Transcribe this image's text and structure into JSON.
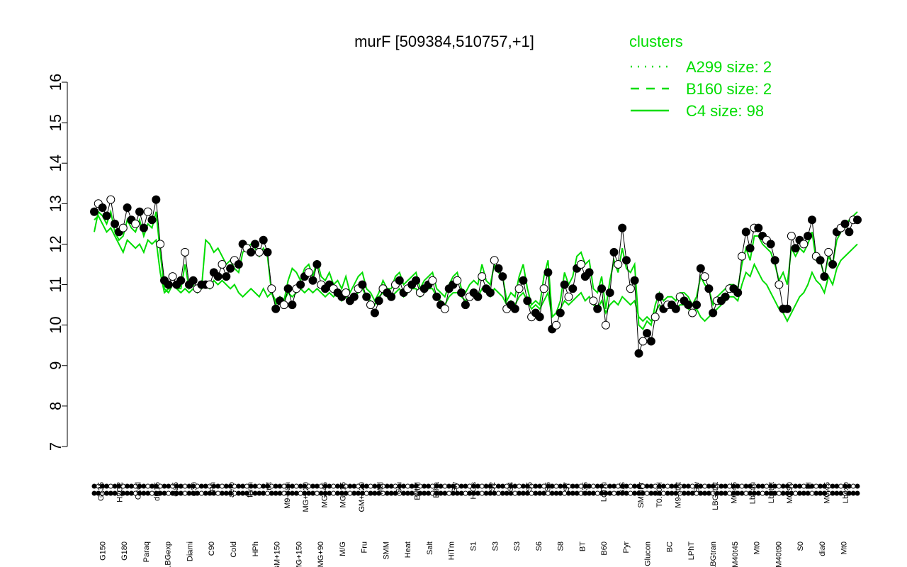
{
  "chart_data": {
    "type": "line",
    "title": "murF [509384,510757,+1]",
    "xlabel": "",
    "ylabel": "",
    "ylim": [
      7,
      16
    ],
    "yticks": [
      7,
      8,
      9,
      10,
      11,
      12,
      13,
      14,
      15,
      16
    ],
    "grid": false,
    "legend": {
      "title": "clusters",
      "placement": "top-right",
      "color": "#00dd00",
      "entries": [
        {
          "label": "A299 size: 2",
          "style": "dotted"
        },
        {
          "label": "B160 size: 2",
          "style": "dashed"
        },
        {
          "label": "C4 size: 98",
          "style": "solid"
        }
      ]
    },
    "x_labels_top": [
      "G135",
      "H2O2",
      "Oxctl",
      "dia15",
      "dia5",
      "C30",
      "LPh",
      "aero",
      "ferm",
      "nit",
      "M9-tran",
      "MG+120",
      "MG+45",
      "MG+15",
      "GM+120",
      "Mal",
      "Glu",
      "BMM",
      "Etha",
      "Gly",
      "HiOs",
      "S2",
      "S4",
      "S5",
      "S6",
      "S7",
      "B36",
      "LoTm",
      "G/S",
      "SMMPr",
      "T0.30H",
      "M9-stat",
      "Sw",
      "LBGstat",
      "M0t45",
      "Lbtran",
      "Lbstat",
      "M0t90",
      "BI",
      "M0t45",
      "Lbexp"
    ],
    "x_labels_bottom": [
      "G150",
      "G180",
      "Paraq",
      "LBGexp",
      "Diami",
      "C90",
      "Cold",
      "HPh",
      "GM+150",
      "MG+150",
      "MG+90",
      "M/G",
      "Fru",
      "SMM",
      "Heat",
      "Salt",
      "HiTm",
      "S1",
      "S3",
      "S3",
      "S6",
      "S8",
      "BT",
      "B60",
      "Pyr",
      "Glucon",
      "BC",
      "LPhT",
      "LBGtran",
      "M40t45",
      "Mt0",
      "M40t90",
      "S0",
      "dia0",
      "Mt0"
    ],
    "series": [
      {
        "name": "",
        "style": "points",
        "values": [
          12.8,
          13.0,
          12.9,
          12.7,
          13.1,
          12.5,
          12.3,
          12.4,
          12.9,
          12.6,
          12.5,
          12.8,
          12.4,
          12.8,
          12.6,
          13.1,
          12.0,
          11.1,
          11.0,
          11.2,
          11.0,
          11.1,
          11.8,
          11.0,
          11.1,
          10.9,
          11.0,
          11.0,
          11.0,
          11.3,
          11.2,
          11.5,
          11.2,
          11.4,
          11.6,
          11.5,
          12.0,
          11.9,
          11.8,
          12.0,
          11.8,
          12.1,
          11.8,
          10.9,
          10.4,
          10.6,
          10.5,
          10.9,
          10.5,
          10.9,
          11.0,
          11.2,
          11.3,
          11.1,
          11.5,
          11.0,
          10.9,
          11.0,
          10.9,
          10.8,
          10.7,
          10.8,
          10.6,
          10.7,
          10.9,
          11.0,
          10.7,
          10.5,
          10.3,
          10.6,
          10.9,
          10.8,
          10.7,
          11.0,
          11.1,
          10.8,
          10.9,
          11.0,
          11.1,
          10.8,
          10.9,
          11.0,
          11.1,
          10.7,
          10.5,
          10.4,
          10.9,
          11.0,
          11.1,
          10.8,
          10.5,
          10.7,
          10.8,
          10.7,
          11.2,
          10.9,
          10.8,
          11.6,
          11.4,
          11.2,
          10.4,
          10.5,
          10.4,
          10.9,
          11.1,
          10.6,
          10.2,
          10.3,
          10.2,
          10.9,
          11.3,
          9.9,
          10.0,
          10.3,
          11.0,
          10.7,
          10.9,
          11.4,
          11.5,
          11.2,
          11.3,
          10.6,
          10.4,
          10.9,
          10.0,
          10.8,
          11.8,
          11.5,
          12.4,
          11.6,
          10.9,
          11.1,
          9.3,
          9.6,
          9.8,
          9.6,
          10.2,
          10.7,
          10.4,
          10.5,
          10.5,
          10.4,
          10.7,
          10.6,
          10.5,
          10.3,
          10.5,
          11.4,
          11.2,
          10.9,
          10.3,
          10.6,
          10.6,
          10.7,
          10.9,
          10.9,
          10.8,
          11.7,
          12.3,
          11.9,
          12.4,
          12.4,
          12.2,
          12.1,
          12.0,
          11.6,
          11.0,
          10.4,
          10.4,
          12.2,
          11.9,
          12.1,
          12.0,
          12.2,
          12.6,
          11.7,
          11.6,
          11.2,
          11.8,
          11.5,
          12.3,
          12.4,
          12.5,
          12.3,
          12.6,
          12.6
        ]
      },
      {
        "name": "",
        "style": "line",
        "values": [
          12.3,
          12.8,
          12.7,
          12.5,
          12.8,
          12.3,
          12.1,
          12.2,
          12.6,
          12.4,
          12.3,
          12.6,
          12.2,
          12.5,
          12.4,
          12.8,
          11.8,
          10.9,
          10.8,
          11.0,
          10.9,
          10.9,
          11.5,
          10.9,
          11.0,
          10.8,
          10.9,
          12.1,
          12.0,
          11.8,
          11.9,
          11.7,
          11.5,
          11.6,
          11.4,
          11.3,
          11.8,
          11.9,
          12.0,
          11.9,
          11.7,
          11.9,
          11.7,
          10.8,
          10.5,
          10.7,
          10.6,
          11.1,
          11.4,
          11.3,
          11.1,
          11.4,
          11.5,
          11.2,
          11.6,
          11.2,
          11.1,
          11.3,
          11.0,
          11.1,
          10.9,
          11.2,
          10.8,
          11.0,
          11.2,
          11.3,
          10.9,
          10.8,
          10.6,
          10.8,
          11.1,
          10.9,
          10.9,
          11.2,
          11.3,
          11.0,
          11.1,
          11.2,
          11.3,
          10.9,
          11.1,
          11.2,
          11.3,
          10.9,
          10.8,
          10.7,
          11.0,
          11.2,
          11.3,
          10.9,
          10.8,
          11.0,
          11.1,
          11.0,
          11.5,
          11.1,
          11.0,
          11.5,
          11.3,
          11.2,
          10.6,
          10.8,
          10.7,
          11.2,
          11.5,
          10.9,
          10.5,
          10.6,
          10.5,
          11.2,
          11.6,
          10.2,
          10.3,
          10.6,
          11.3,
          11.0,
          11.2,
          11.7,
          11.8,
          11.5,
          11.6,
          10.9,
          10.8,
          11.2,
          10.4,
          11.1,
          11.6,
          11.3,
          11.9,
          11.4,
          11.3,
          11.5,
          10.0,
          9.9,
          10.1,
          10.0,
          10.5,
          10.8,
          10.6,
          10.7,
          10.7,
          10.6,
          10.8,
          10.8,
          10.7,
          10.5,
          10.7,
          11.2,
          11.0,
          10.9,
          10.5,
          10.7,
          10.8,
          10.9,
          11.0,
          11.0,
          10.9,
          11.5,
          11.9,
          11.6,
          12.2,
          12.2,
          12.0,
          11.9,
          11.8,
          11.5,
          11.1,
          11.3,
          11.0,
          11.9,
          11.7,
          11.9,
          11.8,
          12.0,
          12.3,
          11.6,
          11.6,
          11.2,
          11.7,
          11.5,
          12.1,
          12.3,
          12.4,
          12.6,
          12.7,
          12.8
        ]
      },
      {
        "name": "",
        "style": "line",
        "values": [
          12.6,
          12.7,
          12.5,
          12.3,
          12.4,
          12.2,
          12.0,
          11.8,
          12.1,
          12.0,
          11.9,
          12.0,
          11.8,
          12.1,
          12.0,
          12.1,
          11.3,
          10.8,
          10.9,
          11.0,
          10.9,
          10.8,
          10.9,
          10.8,
          10.9,
          10.8,
          10.9,
          11.0,
          10.9,
          11.1,
          11.0,
          11.1,
          11.0,
          10.9,
          11.0,
          10.8,
          10.7,
          10.8,
          10.9,
          10.8,
          10.7,
          10.9,
          10.7,
          10.8,
          10.6,
          10.7,
          10.6,
          10.8,
          10.7,
          10.8,
          10.9,
          10.8,
          10.9,
          10.8,
          10.9,
          10.8,
          10.7,
          10.8,
          10.7,
          10.8,
          10.6,
          10.7,
          10.6,
          10.7,
          10.8,
          10.9,
          10.7,
          10.6,
          10.5,
          10.7,
          10.8,
          10.7,
          10.7,
          10.8,
          10.9,
          10.7,
          10.8,
          10.9,
          10.9,
          10.7,
          10.8,
          10.9,
          10.9,
          10.7,
          10.6,
          10.5,
          10.7,
          10.8,
          10.8,
          10.7,
          10.6,
          10.7,
          10.8,
          10.7,
          10.9,
          10.8,
          10.7,
          10.9,
          10.8,
          10.7,
          10.5,
          10.6,
          10.5,
          10.7,
          10.8,
          10.6,
          10.4,
          10.5,
          10.4,
          10.6,
          10.8,
          10.2,
          10.3,
          10.4,
          10.6,
          10.5,
          10.6,
          10.7,
          10.8,
          10.6,
          10.7,
          10.5,
          10.4,
          10.6,
          10.3,
          10.5,
          10.6,
          10.5,
          10.7,
          10.6,
          10.5,
          10.6,
          10.2,
          10.1,
          10.2,
          10.1,
          10.3,
          10.5,
          10.4,
          10.5,
          10.5,
          10.4,
          10.5,
          10.5,
          10.4,
          10.3,
          10.4,
          10.2,
          10.1,
          10.2,
          10.3,
          10.4,
          10.5,
          10.6,
          10.7,
          10.7,
          10.6,
          11.0,
          11.3,
          11.2,
          11.5,
          11.3,
          11.1,
          11.0,
          10.8,
          10.6,
          10.4,
          10.3,
          10.1,
          10.3,
          10.5,
          10.7,
          10.8,
          11.0,
          11.3,
          11.1,
          11.0,
          10.8,
          11.2,
          11.0,
          11.4,
          11.6,
          11.7,
          11.8,
          11.9,
          12.0
        ]
      }
    ]
  }
}
